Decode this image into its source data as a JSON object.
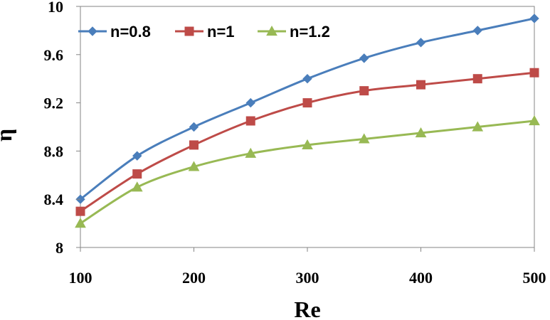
{
  "chart_data": {
    "type": "line",
    "title": "",
    "xlabel": "Re",
    "ylabel": "η",
    "x": [
      100,
      150,
      200,
      250,
      300,
      350,
      400,
      450,
      500
    ],
    "xlim": [
      100,
      500
    ],
    "ylim": [
      8,
      10
    ],
    "xticks": [
      "100",
      "200",
      "300",
      "400",
      "500"
    ],
    "yticks": [
      "8",
      "8.4",
      "8.8",
      "9.2",
      "9.6",
      "10"
    ],
    "grid": false,
    "legend_position": "top",
    "series": [
      {
        "name": "n=0.8",
        "color": "#4a7ebb",
        "marker": "diamond",
        "values": [
          8.4,
          8.76,
          9.0,
          9.2,
          9.4,
          9.57,
          9.7,
          9.8,
          9.9
        ]
      },
      {
        "name": "n=1",
        "color": "#be4b48",
        "marker": "square",
        "values": [
          8.3,
          8.61,
          8.85,
          9.05,
          9.2,
          9.3,
          9.35,
          9.4,
          9.45
        ]
      },
      {
        "name": "n=1.2",
        "color": "#98b954",
        "marker": "triangle",
        "values": [
          8.2,
          8.5,
          8.67,
          8.78,
          8.85,
          8.9,
          8.95,
          9.0,
          9.05
        ]
      }
    ]
  }
}
